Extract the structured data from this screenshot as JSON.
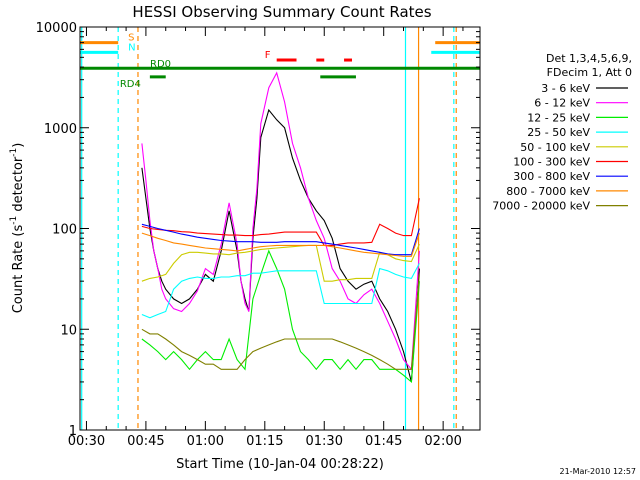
{
  "chart_data": {
    "type": "line",
    "title": "HESSI Observing Summary Count Rates",
    "xlabel": "Start Time (10-Jan-04 00:28:22)",
    "ylabel": "Count Rate (s⁻¹ detector⁻¹)",
    "ylabel_parts": {
      "main": "Count Rate (s",
      "sup1": "-1",
      "mid": " detector",
      "sup2": "-1",
      "end": ")"
    },
    "y_scale": "log",
    "ylim": [
      1,
      10000
    ],
    "xlim_minutes": [
      28.37,
      129.3
    ],
    "x_ticks": [
      {
        "minute": 30,
        "label": "00:30"
      },
      {
        "minute": 45,
        "label": "00:45"
      },
      {
        "minute": 60,
        "label": "01:00"
      },
      {
        "minute": 75,
        "label": "01:15"
      },
      {
        "minute": 90,
        "label": "01:30"
      },
      {
        "minute": 105,
        "label": "01:45"
      },
      {
        "minute": 120,
        "label": "02:00"
      }
    ],
    "y_ticks": [
      {
        "value": 1,
        "label": "1"
      },
      {
        "value": 10,
        "label": "10"
      },
      {
        "value": 100,
        "label": "100"
      },
      {
        "value": 1000,
        "label": "1000"
      },
      {
        "value": 10000,
        "label": "10000"
      }
    ],
    "legend": {
      "placement": "right",
      "header": [
        "Det 1,3,4,5,6,9,",
        "FDecim 1, Att 0"
      ]
    },
    "series": [
      {
        "name": "3 - 6 keV",
        "color": "#000000",
        "x": [
          44,
          45,
          46,
          47,
          48,
          49,
          50,
          52,
          54,
          56,
          58,
          60,
          62,
          64,
          66,
          68,
          69,
          70,
          71,
          72,
          73,
          74,
          76,
          78,
          80,
          82,
          84,
          86,
          88,
          90,
          92,
          94,
          96,
          98,
          100,
          102,
          104,
          106,
          108,
          110,
          112,
          114
        ],
        "y": [
          400,
          200,
          100,
          60,
          40,
          30,
          25,
          20,
          18,
          20,
          25,
          35,
          30,
          60,
          150,
          60,
          30,
          20,
          15,
          80,
          200,
          800,
          1500,
          1200,
          1000,
          500,
          300,
          200,
          150,
          120,
          80,
          40,
          30,
          25,
          28,
          30,
          20,
          15,
          10,
          6,
          3,
          40
        ]
      },
      {
        "name": "6 - 12 keV",
        "color": "#ff00ff",
        "x": [
          44,
          45,
          46,
          47,
          48,
          49,
          50,
          52,
          54,
          56,
          58,
          60,
          62,
          64,
          66,
          68,
          69,
          70,
          71,
          72,
          73,
          74,
          76,
          78,
          80,
          82,
          84,
          86,
          88,
          90,
          92,
          94,
          96,
          98,
          100,
          102,
          104,
          106,
          108,
          110,
          112,
          114
        ],
        "y": [
          700,
          300,
          120,
          60,
          40,
          25,
          20,
          16,
          15,
          18,
          24,
          40,
          35,
          70,
          180,
          70,
          30,
          18,
          15,
          100,
          250,
          1100,
          2500,
          3500,
          1800,
          700,
          400,
          200,
          120,
          80,
          40,
          30,
          20,
          18,
          22,
          25,
          18,
          12,
          8,
          5,
          4,
          60
        ]
      },
      {
        "name": "12 - 25 keV",
        "color": "#00ee00",
        "x": [
          44,
          46,
          48,
          50,
          52,
          54,
          56,
          58,
          60,
          62,
          64,
          66,
          68,
          70,
          72,
          74,
          76,
          78,
          80,
          82,
          84,
          86,
          88,
          90,
          92,
          94,
          96,
          98,
          100,
          102,
          104,
          106,
          108,
          110,
          112,
          114
        ],
        "y": [
          8,
          7,
          6,
          5,
          6,
          5,
          4,
          5,
          6,
          5,
          5,
          8,
          5,
          4,
          20,
          35,
          60,
          40,
          25,
          10,
          6,
          5,
          4,
          5,
          5,
          4,
          5,
          4,
          5,
          5,
          4,
          4,
          4,
          3.5,
          3,
          30
        ]
      },
      {
        "name": "25 - 50 keV",
        "color": "#00ffff",
        "x": [
          44,
          46,
          48,
          50,
          52,
          54,
          56,
          58,
          60,
          62,
          64,
          66,
          68,
          70,
          72,
          74,
          76,
          78,
          80,
          82,
          84,
          86,
          88,
          90,
          92,
          94,
          96,
          98,
          100,
          102,
          104,
          106,
          108,
          110,
          112,
          114
        ],
        "y": [
          14,
          13,
          14,
          15,
          25,
          30,
          32,
          33,
          32,
          32,
          33,
          33,
          34,
          34,
          36,
          36,
          37,
          38,
          38,
          38,
          38,
          38,
          38,
          18,
          18,
          18,
          18,
          18,
          18,
          18,
          40,
          38,
          35,
          33,
          32,
          45
        ]
      },
      {
        "name": "50 - 100 keV",
        "color": "#cccc00",
        "x": [
          44,
          46,
          48,
          50,
          52,
          54,
          56,
          58,
          60,
          62,
          64,
          66,
          68,
          70,
          72,
          74,
          76,
          78,
          80,
          82,
          84,
          86,
          88,
          90,
          92,
          94,
          96,
          98,
          100,
          102,
          104,
          106,
          108,
          110,
          112,
          114
        ],
        "y": [
          30,
          32,
          33,
          35,
          45,
          55,
          58,
          58,
          57,
          56,
          56,
          55,
          57,
          58,
          60,
          62,
          63,
          64,
          65,
          66,
          67,
          68,
          68,
          30,
          30,
          31,
          31,
          32,
          32,
          32,
          58,
          55,
          50,
          48,
          47,
          70
        ]
      },
      {
        "name": "100 - 300 keV",
        "color": "#ff0000",
        "x": [
          44,
          46,
          48,
          50,
          52,
          54,
          56,
          58,
          60,
          62,
          64,
          66,
          68,
          70,
          72,
          74,
          76,
          78,
          80,
          82,
          84,
          86,
          88,
          90,
          92,
          94,
          96,
          98,
          100,
          102,
          104,
          106,
          108,
          110,
          112,
          114
        ],
        "y": [
          105,
          100,
          98,
          96,
          95,
          93,
          92,
          90,
          89,
          88,
          87,
          86,
          86,
          85,
          85,
          87,
          88,
          90,
          92,
          92,
          92,
          92,
          92,
          68,
          68,
          70,
          72,
          72,
          72,
          73,
          110,
          100,
          90,
          85,
          85,
          200
        ]
      },
      {
        "name": "300 - 800 keV",
        "color": "#0000ff",
        "x": [
          44,
          46,
          48,
          50,
          52,
          54,
          56,
          58,
          60,
          62,
          64,
          66,
          68,
          70,
          72,
          74,
          76,
          78,
          80,
          82,
          84,
          86,
          88,
          90,
          92,
          94,
          96,
          98,
          100,
          102,
          104,
          106,
          108,
          110,
          112,
          114
        ],
        "y": [
          110,
          105,
          100,
          96,
          92,
          88,
          85,
          82,
          80,
          78,
          76,
          75,
          74,
          74,
          74,
          73,
          73,
          73,
          74,
          74,
          74,
          74,
          74,
          72,
          70,
          68,
          66,
          64,
          62,
          60,
          58,
          56,
          55,
          55,
          55,
          100
        ]
      },
      {
        "name": "800 - 7000 keV",
        "color": "#ff8800",
        "x": [
          44,
          46,
          48,
          50,
          52,
          54,
          56,
          58,
          60,
          62,
          64,
          66,
          68,
          70,
          72,
          74,
          76,
          78,
          80,
          82,
          84,
          86,
          88,
          90,
          92,
          94,
          96,
          98,
          100,
          102,
          104,
          106,
          108,
          110,
          112,
          114
        ],
        "y": [
          90,
          85,
          80,
          76,
          72,
          70,
          68,
          66,
          64,
          63,
          62,
          61,
          60,
          62,
          64,
          66,
          67,
          68,
          68,
          68,
          68,
          68,
          68,
          68,
          66,
          64,
          62,
          60,
          58,
          57,
          56,
          55,
          54,
          53,
          53,
          90
        ]
      },
      {
        "name": "7000 - 20000 keV",
        "color": "#808000",
        "x": [
          44,
          46,
          48,
          50,
          52,
          54,
          56,
          58,
          60,
          62,
          64,
          66,
          68,
          70,
          72,
          74,
          76,
          78,
          80,
          82,
          84,
          86,
          88,
          90,
          92,
          94,
          96,
          98,
          100,
          102,
          104,
          106,
          108,
          110,
          112,
          114
        ],
        "y": [
          10,
          9,
          9,
          8,
          7,
          6,
          5.5,
          5,
          4.5,
          4.5,
          4,
          4,
          4,
          5,
          6,
          6.5,
          7,
          7.5,
          8,
          8,
          8,
          8,
          8,
          8,
          8,
          7.5,
          7,
          6.5,
          6,
          5.5,
          5,
          4.5,
          4,
          4,
          4,
          35
        ]
      }
    ],
    "flags": [
      {
        "label": "S",
        "color": "#ff8800",
        "y": 7000,
        "segments": [
          [
            28.37,
            38
          ],
          [
            118,
            129.3
          ]
        ]
      },
      {
        "label": "N",
        "color": "#00ffff",
        "y": 5600,
        "segments": [
          [
            28.37,
            38
          ],
          [
            117,
            129.3
          ]
        ]
      },
      {
        "label": "RD0",
        "color": "#008800",
        "y": 3900,
        "segments": [
          [
            28.37,
            129.3
          ]
        ]
      },
      {
        "label": "RD4",
        "color": "#008800",
        "y": 3200,
        "segments": [
          [
            46,
            50
          ],
          [
            89,
            98
          ]
        ]
      },
      {
        "label": "F",
        "color": "#ff0000",
        "y": 4700,
        "segments": [
          [
            78,
            83
          ],
          [
            88,
            90
          ],
          [
            95,
            97
          ]
        ]
      }
    ],
    "vertical_lines": [
      {
        "minute": 28.8,
        "color": "#00ffff",
        "style": "solid"
      },
      {
        "minute": 38,
        "color": "#00ffff",
        "style": "dashed"
      },
      {
        "minute": 43,
        "color": "#ff8800",
        "style": "dashed"
      },
      {
        "minute": 110.5,
        "color": "#00ffff",
        "style": "solid"
      },
      {
        "minute": 113.8,
        "color": "#ff8800",
        "style": "solid"
      },
      {
        "minute": 122.7,
        "color": "#00ffff",
        "style": "dashed"
      },
      {
        "minute": 123.3,
        "color": "#ff8800",
        "style": "dashed"
      }
    ],
    "footer": "21-Mar-2010 12:57"
  }
}
